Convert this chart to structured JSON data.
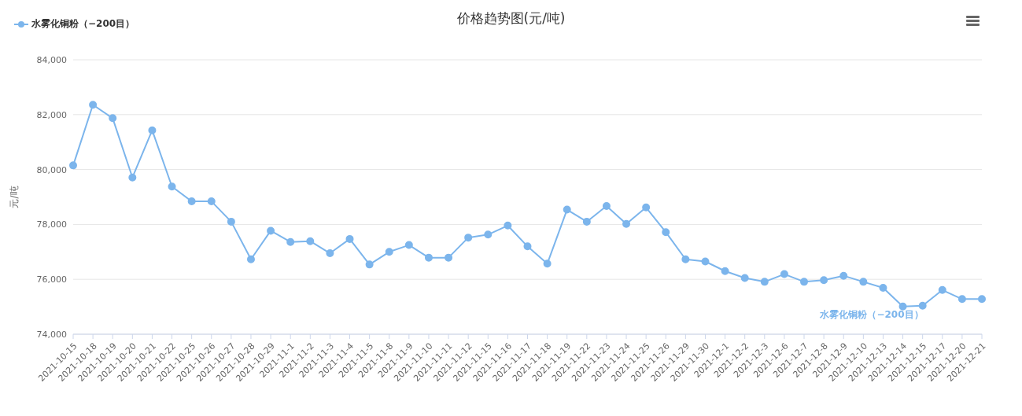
{
  "chart_data": {
    "type": "line",
    "title": "价格趋势图(元/吨)",
    "ylabel": "元/吨",
    "categories": [
      "2021-10-15",
      "2021-10-18",
      "2021-10-19",
      "2021-10-20",
      "2021-10-21",
      "2021-10-22",
      "2021-10-25",
      "2021-10-26",
      "2021-10-27",
      "2021-10-28",
      "2021-10-29",
      "2021-11-1",
      "2021-11-2",
      "2021-11-3",
      "2021-11-4",
      "2021-11-5",
      "2021-11-8",
      "2021-11-9",
      "2021-11-10",
      "2021-11-11",
      "2021-11-12",
      "2021-11-15",
      "2021-11-16",
      "2021-11-17",
      "2021-11-18",
      "2021-11-19",
      "2021-11-22",
      "2021-11-23",
      "2021-11-24",
      "2021-11-25",
      "2021-11-26",
      "2021-11-29",
      "2021-11-30",
      "2021-12-1",
      "2021-12-2",
      "2021-12-3",
      "2021-12-6",
      "2021-12-7",
      "2021-12-8",
      "2021-12-9",
      "2021-12-10",
      "2021-12-13",
      "2021-12-14",
      "2021-12-15",
      "2021-12-17",
      "2021-12-20",
      "2021-12-21"
    ],
    "series": [
      {
        "name": "水雾化铜粉（−200目）",
        "color": "#7cb5ec",
        "values": [
          80150,
          82360,
          81870,
          79710,
          81430,
          79380,
          78840,
          78840,
          78100,
          76730,
          77770,
          77360,
          77390,
          76950,
          77470,
          76540,
          77000,
          77250,
          76790,
          76790,
          77520,
          77630,
          77960,
          77200,
          76570,
          78540,
          78100,
          78670,
          78020,
          78620,
          77720,
          76730,
          76650,
          76300,
          76050,
          75910,
          76190,
          75910,
          75970,
          76130,
          75910,
          75690,
          75010,
          75040,
          75610,
          75280,
          75280
        ]
      }
    ],
    "ylim": [
      74000,
      84000
    ],
    "yticks": [
      {
        "value": 74000,
        "label": "74,000"
      },
      {
        "value": 76000,
        "label": "76,000"
      },
      {
        "value": 78000,
        "label": "78,000"
      },
      {
        "value": 80000,
        "label": "80,000"
      },
      {
        "value": 82000,
        "label": "82,000"
      },
      {
        "value": 84000,
        "label": "84,000"
      }
    ],
    "grid": "y",
    "legend": "top left",
    "marker": "circle",
    "line_style": "solid"
  }
}
